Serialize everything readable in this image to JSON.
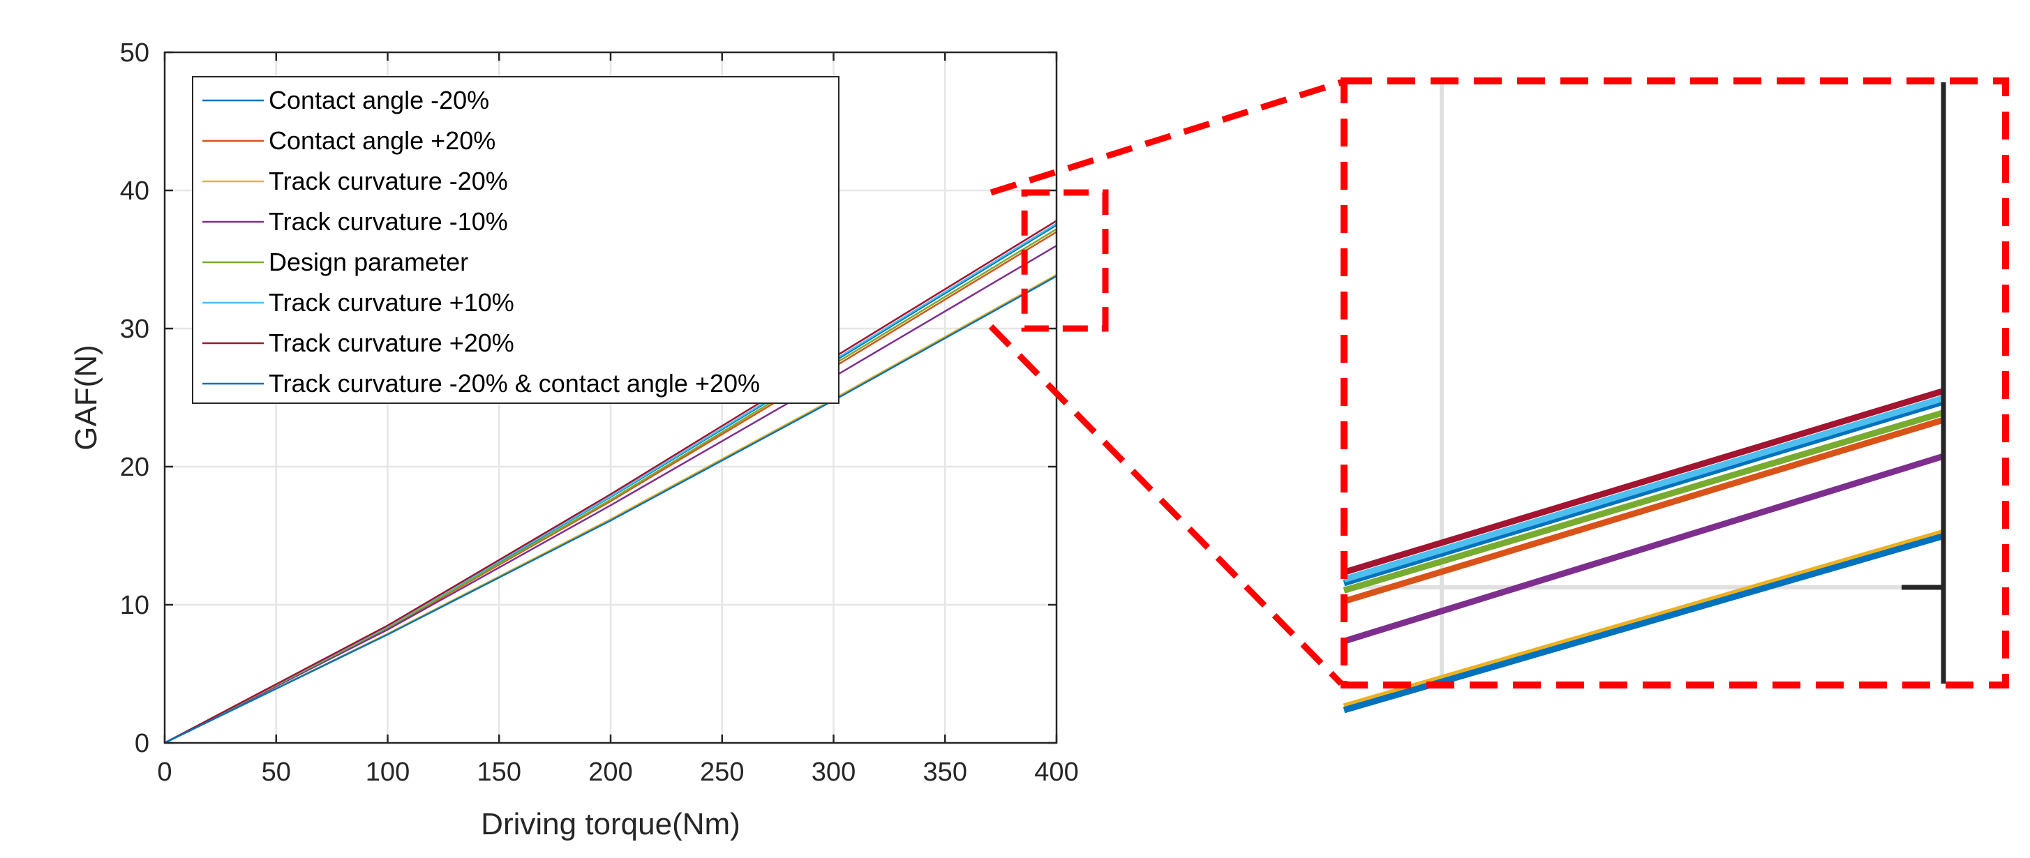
{
  "chart_data": {
    "type": "line",
    "title": "",
    "xlabel": "Driving torque(Nm)",
    "ylabel": "GAF(N)",
    "xlim": [
      0,
      400
    ],
    "ylim": [
      0,
      50
    ],
    "xticks": [
      0,
      50,
      100,
      150,
      200,
      250,
      300,
      350,
      400
    ],
    "yticks": [
      0,
      10,
      20,
      30,
      40,
      50
    ],
    "grid": true,
    "legend_position": "top-left",
    "x": [
      0,
      100,
      200,
      300,
      400
    ],
    "series": [
      {
        "name": "Contact angle -20%",
        "color": "#0072BD",
        "values": [
          0,
          8.4,
          17.8,
          27.6,
          37.5
        ]
      },
      {
        "name": "Contact angle +20%",
        "color": "#D95319",
        "values": [
          0,
          8.3,
          17.5,
          27.2,
          37.0
        ]
      },
      {
        "name": "Track curvature -20%",
        "color": "#EDB120",
        "values": [
          0,
          7.9,
          16.2,
          24.9,
          33.9
        ]
      },
      {
        "name": "Track curvature -10%",
        "color": "#7E2F8E",
        "values": [
          0,
          8.2,
          17.2,
          26.5,
          36.0
        ]
      },
      {
        "name": "Design parameter",
        "color": "#77AC30",
        "values": [
          0,
          8.35,
          17.6,
          27.4,
          37.2
        ]
      },
      {
        "name": "Track curvature +10%",
        "color": "#4DBEEE",
        "values": [
          0,
          8.45,
          17.85,
          27.7,
          37.6
        ]
      },
      {
        "name": "Track curvature +20%",
        "color": "#A2142F",
        "values": [
          0,
          8.5,
          18.0,
          27.9,
          37.8
        ]
      },
      {
        "name": "Track curvature -20% & contact angle +20%",
        "color": "#0072BD",
        "values": [
          0,
          7.85,
          16.1,
          24.8,
          33.8
        ]
      }
    ],
    "inset": {
      "description_zoom_box_x": [
        370,
        400
      ],
      "description_zoom_box_y": [
        30,
        40
      ],
      "box_color": "#FF0000",
      "zoom_values_at_370": [
        32.5,
        32.0,
        29.1,
        30.9,
        32.3,
        32.6,
        32.8,
        29.0
      ],
      "zoom_values_at_400": [
        37.5,
        37.0,
        33.9,
        36.0,
        37.2,
        37.6,
        37.8,
        33.8
      ]
    }
  }
}
